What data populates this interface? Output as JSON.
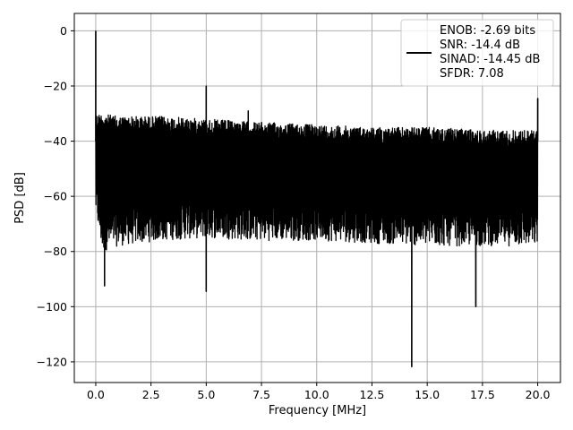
{
  "chart_data": {
    "type": "line",
    "title": "",
    "xlabel": "Frequency [MHz]",
    "ylabel": "PSD [dB]",
    "xlim": [
      -0.97,
      21.03
    ],
    "ylim": [
      -127.5,
      6.3
    ],
    "xticks": [
      0.0,
      2.5,
      5.0,
      7.5,
      10.0,
      12.5,
      15.0,
      17.5,
      20.0
    ],
    "xtick_labels": [
      "0.0",
      "2.5",
      "5.0",
      "7.5",
      "10.0",
      "12.5",
      "15.0",
      "17.5",
      "20.0"
    ],
    "yticks": [
      0,
      -20,
      -40,
      -60,
      -80,
      -100,
      -120
    ],
    "ytick_labels": [
      "0",
      "−20",
      "−40",
      "−60",
      "−80",
      "−100",
      "−120"
    ],
    "grid": true,
    "legend_position": "top-right",
    "line_color": "#000000",
    "series": [
      {
        "legend_lines": [
          "ENOB: -2.69 bits",
          "SNR: -14.4 dB",
          "SINAD: -14.45 dB",
          "SFDR: 7.08"
        ],
        "noise_floor_envelope": {
          "x": [
            0.0,
            0.3,
            1.0,
            3.0,
            5.0,
            7.0,
            10.0,
            12.5,
            15.0,
            17.5,
            20.0
          ],
          "upper": [
            -30,
            -30,
            -31,
            -31,
            -32,
            -33,
            -34,
            -35,
            -35,
            -36,
            -36
          ],
          "lower": [
            -67,
            -80,
            -78,
            -76,
            -75,
            -76,
            -76,
            -77,
            -78,
            -78,
            -78
          ]
        },
        "peaks": [
          {
            "x": 0.0,
            "y": 0.0
          },
          {
            "x": 5.0,
            "y": -20.0
          },
          {
            "x": 6.9,
            "y": -29.0
          },
          {
            "x": 20.0,
            "y": -24.5
          }
        ],
        "dips": [
          {
            "x": 0.4,
            "y": -92.5
          },
          {
            "x": 5.0,
            "y": -94.5
          },
          {
            "x": 14.3,
            "y": -121.8
          },
          {
            "x": 17.2,
            "y": -100.0
          }
        ]
      }
    ]
  }
}
